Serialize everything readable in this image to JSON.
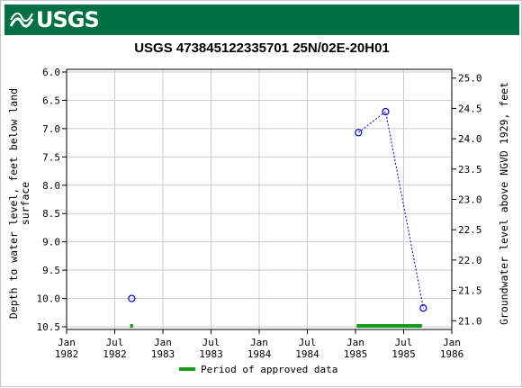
{
  "header": {
    "logo_text": "USGS",
    "brand_color": "#006f41"
  },
  "chart_data": {
    "type": "scatter",
    "title": "USGS 473845122335701 25N/02E-20H01",
    "ylabel_left_line1": "Depth to water level, feet below land",
    "ylabel_left_line2": "surface",
    "ylabel_right": "Groundwater level above NGVD 1929, feet",
    "ylim_left": [
      6.0,
      10.5
    ],
    "ylim_right": [
      20.9,
      25.1
    ],
    "y_ticks_left": [
      "6.0",
      "6.5",
      "7.0",
      "7.5",
      "8.0",
      "8.5",
      "9.0",
      "9.5",
      "10.0",
      "10.5"
    ],
    "y_ticks_right": [
      "21.0",
      "21.5",
      "22.0",
      "22.5",
      "23.0",
      "23.5",
      "24.0",
      "24.5",
      "25.0"
    ],
    "x_ticks": [
      {
        "line1": "Jan",
        "line2": "1982"
      },
      {
        "line1": "Jul",
        "line2": "1982"
      },
      {
        "line1": "Jan",
        "line2": "1983"
      },
      {
        "line1": "Jul",
        "line2": "1983"
      },
      {
        "line1": "Jan",
        "line2": "1984"
      },
      {
        "line1": "Jul",
        "line2": "1984"
      },
      {
        "line1": "Jan",
        "line2": "1985"
      },
      {
        "line1": "Jul",
        "line2": "1985"
      },
      {
        "line1": "Jan",
        "line2": "1986"
      }
    ],
    "xlim": [
      "1982-01-01",
      "1986-01-01"
    ],
    "points": [
      {
        "date": "1982-09-05",
        "depth": 10.0
      },
      {
        "date": "1985-01-12",
        "depth": 7.07
      },
      {
        "date": "1985-04-25",
        "depth": 6.7
      },
      {
        "date": "1985-09-15",
        "depth": 10.17
      }
    ],
    "connected_segments": [
      [
        1,
        2,
        3
      ]
    ],
    "approved_periods": [
      {
        "start": "1982-08-30",
        "end": "1982-09-10"
      },
      {
        "start": "1985-01-05",
        "end": "1985-09-10"
      }
    ],
    "legend": {
      "label": "Period of approved data",
      "placement": "bottom-center"
    },
    "grid": true,
    "colors": {
      "points": "#0000cc",
      "approved": "#1a9a1a",
      "grid": "#cccccc"
    }
  }
}
